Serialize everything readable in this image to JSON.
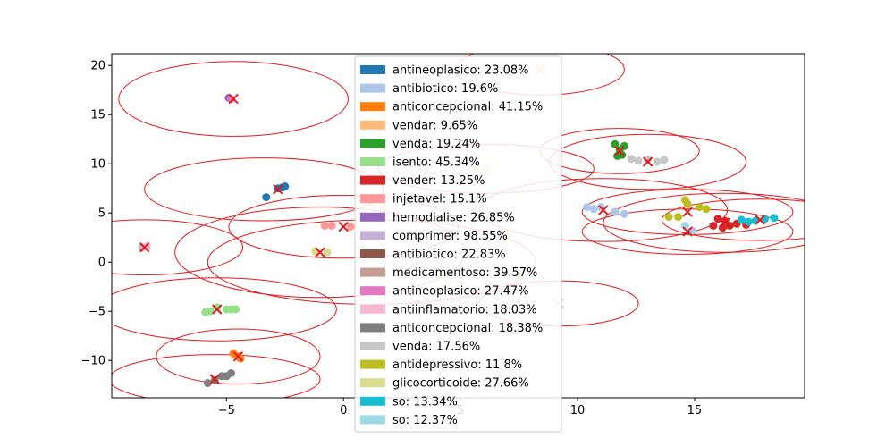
{
  "chart_data": {
    "type": "scatter",
    "title": "",
    "xlabel": "",
    "ylabel": "",
    "xlim": [
      -9.9,
      19.7
    ],
    "ylim": [
      -13.8,
      21.2
    ],
    "x_ticks": [
      {
        "value": -5,
        "label": "−5"
      },
      {
        "value": 0,
        "label": "0"
      },
      {
        "value": 5,
        "label": "5"
      },
      {
        "value": 10,
        "label": "10"
      },
      {
        "value": 15,
        "label": "15"
      }
    ],
    "y_ticks": [
      {
        "value": -10,
        "label": "−10"
      },
      {
        "value": -5,
        "label": "−5"
      },
      {
        "value": 0,
        "label": "0"
      },
      {
        "value": 5,
        "label": "5"
      },
      {
        "value": 10,
        "label": "10"
      },
      {
        "value": 15,
        "label": "15"
      },
      {
        "value": 20,
        "label": "20"
      }
    ],
    "grid": false,
    "legend_position": "top-center",
    "series": [
      {
        "name": "antineoplasico: 23.08%",
        "color": "#1f77b4",
        "points": [
          [
            -3.3,
            6.6
          ],
          [
            -2.6,
            7.6
          ],
          [
            -2.8,
            7.5
          ],
          [
            -2.5,
            7.7
          ]
        ]
      },
      {
        "name": "antibiotico: 19.6%",
        "color": "#aec7e8",
        "points": [
          [
            10.4,
            5.6
          ],
          [
            10.7,
            5.4
          ],
          [
            11.0,
            5.6
          ],
          [
            11.6,
            5.1
          ],
          [
            12.0,
            4.9
          ],
          [
            14.9,
            3.2
          ]
        ]
      },
      {
        "name": "anticoncepcional: 41.15%",
        "color": "#ff7f0e",
        "points": [
          [
            -4.7,
            -9.3
          ],
          [
            -4.5,
            -9.6
          ],
          [
            -4.4,
            -9.8
          ]
        ]
      },
      {
        "name": "vendar: 9.65%",
        "color": "#ffbb78",
        "points": []
      },
      {
        "name": "venda: 19.24%",
        "color": "#2ca02c",
        "points": [
          [
            11.6,
            12.0
          ],
          [
            11.8,
            11.4
          ],
          [
            11.7,
            10.8
          ],
          [
            11.9,
            10.9
          ],
          [
            12.0,
            11.8
          ]
        ]
      },
      {
        "name": "isento: 45.34%",
        "color": "#98df8a",
        "points": [
          [
            -5.9,
            -5.1
          ],
          [
            -5.7,
            -5.0
          ],
          [
            -5.4,
            -4.6
          ],
          [
            -5.0,
            -4.8
          ],
          [
            -4.8,
            -4.8
          ],
          [
            -4.6,
            -4.8
          ]
        ]
      },
      {
        "name": "vender: 13.25%",
        "color": "#d62728",
        "points": [
          [
            15.8,
            3.7
          ],
          [
            16.0,
            4.4
          ],
          [
            16.3,
            4.2
          ],
          [
            16.5,
            3.7
          ],
          [
            16.8,
            3.9
          ],
          [
            17.2,
            3.8
          ],
          [
            16.2,
            3.5
          ]
        ]
      },
      {
        "name": "injetavel: 15.1%",
        "color": "#ff9896",
        "points": [
          [
            -0.8,
            3.7
          ],
          [
            -0.5,
            3.7
          ],
          [
            0.3,
            3.6
          ]
        ]
      },
      {
        "name": "hemodialise: 26.85%",
        "color": "#9467bd",
        "points": [
          [
            -4.9,
            16.7
          ]
        ]
      },
      {
        "name": "comprimer: 98.55%",
        "color": "#c5b0d5",
        "points": [
          [
            -8.6,
            1.5
          ]
        ]
      },
      {
        "name": "antibiotico: 22.83%",
        "color": "#8c564b",
        "points": []
      },
      {
        "name": "medicamentoso: 39.57%",
        "color": "#c49c94",
        "points": []
      },
      {
        "name": "antineoplasico: 27.47%",
        "color": "#e377c2",
        "points": [
          [
            -4.8,
            16.6
          ]
        ]
      },
      {
        "name": "antiinflamatorio: 18.03%",
        "color": "#f7b6d2",
        "points": [
          [
            -8.4,
            1.6
          ]
        ]
      },
      {
        "name": "anticoncepcional: 18.38%",
        "color": "#7f7f7f",
        "points": [
          [
            -5.8,
            -12.3
          ],
          [
            -5.5,
            -12.0
          ],
          [
            -5.2,
            -11.6
          ],
          [
            -5.0,
            -11.6
          ],
          [
            -4.8,
            -11.3
          ]
        ]
      },
      {
        "name": "venda: 17.56%",
        "color": "#c7c7c7",
        "points": [
          [
            12.3,
            10.5
          ],
          [
            12.6,
            10.3
          ],
          [
            13.0,
            10.4
          ],
          [
            13.4,
            10.2
          ],
          [
            13.7,
            10.4
          ]
        ]
      },
      {
        "name": "antidepressivo: 11.8%",
        "color": "#bcbd22",
        "points": [
          [
            13.9,
            4.6
          ],
          [
            14.3,
            4.6
          ],
          [
            14.6,
            6.3
          ],
          [
            14.7,
            5.9
          ],
          [
            15.2,
            5.6
          ],
          [
            15.5,
            5.4
          ]
        ]
      },
      {
        "name": "glicocorticoide: 27.66%",
        "color": "#dbdb8d",
        "points": [
          [
            -1.2,
            1.1
          ],
          [
            -0.7,
            1.0
          ]
        ]
      },
      {
        "name": "so: 13.34%",
        "color": "#17becf",
        "points": [
          [
            17.0,
            4.3
          ],
          [
            17.3,
            4.1
          ],
          [
            17.6,
            4.2
          ],
          [
            18.0,
            4.4
          ],
          [
            18.4,
            4.5
          ]
        ]
      },
      {
        "name": "so: 12.37%",
        "color": "#9edae5",
        "points": [
          [
            14.6,
            3.7
          ]
        ]
      }
    ],
    "centers": [
      {
        "x": -4.7,
        "y": 16.6,
        "color": "#e31a1c"
      },
      {
        "x": -2.8,
        "y": 7.4,
        "color": "#e31a1c"
      },
      {
        "x": -8.5,
        "y": 1.5,
        "color": "#e31a1c"
      },
      {
        "x": 0.0,
        "y": 3.6,
        "color": "#e31a1c"
      },
      {
        "x": -1.0,
        "y": 1.0,
        "color": "#e31a1c"
      },
      {
        "x": -5.4,
        "y": -4.8,
        "color": "#e31a1c"
      },
      {
        "x": -4.5,
        "y": -9.6,
        "color": "#e31a1c"
      },
      {
        "x": -5.5,
        "y": -11.9,
        "color": "#e31a1c"
      },
      {
        "x": 8.4,
        "y": 19.6,
        "color": "#ffbb78"
      },
      {
        "x": 6.1,
        "y": 9.5,
        "color": "#ffbb78"
      },
      {
        "x": 4.2,
        "y": -1.5,
        "color": "#ffbb78"
      },
      {
        "x": 9.2,
        "y": -4.2,
        "color": "#f7b6d2"
      },
      {
        "x": 11.8,
        "y": 11.3,
        "color": "#e31a1c"
      },
      {
        "x": 13.0,
        "y": 10.2,
        "color": "#e31a1c"
      },
      {
        "x": 11.1,
        "y": 5.3,
        "color": "#e31a1c"
      },
      {
        "x": 14.7,
        "y": 5.1,
        "color": "#e31a1c"
      },
      {
        "x": 14.7,
        "y": 3.1,
        "color": "#e31a1c"
      },
      {
        "x": 16.3,
        "y": 4.0,
        "color": "#e31a1c"
      },
      {
        "x": 17.8,
        "y": 4.3,
        "color": "#e31a1c"
      }
    ],
    "circles": [
      {
        "cx": -4.7,
        "cy": 16.6,
        "rx": 4.9,
        "ry": 3.8
      },
      {
        "cx": -3.4,
        "cy": 7.4,
        "rx": 5.1,
        "ry": 3.2
      },
      {
        "cx": -8.5,
        "cy": 1.5,
        "rx": 4.2,
        "ry": 2.8
      },
      {
        "cx": 0.0,
        "cy": 3.6,
        "rx": 4.9,
        "ry": 3.2
      },
      {
        "cx": -1.0,
        "cy": 1.0,
        "rx": 6.2,
        "ry": 4.6
      },
      {
        "cx": 1.2,
        "cy": 0.0,
        "rx": 7.0,
        "ry": 4.3
      },
      {
        "cx": -5.4,
        "cy": -4.8,
        "rx": 5.1,
        "ry": 3.2
      },
      {
        "cx": -4.5,
        "cy": -9.6,
        "rx": 3.5,
        "ry": 2.8
      },
      {
        "cx": -5.5,
        "cy": -11.9,
        "rx": 4.5,
        "ry": 2.5
      },
      {
        "cx": 8.4,
        "cy": 19.6,
        "rx": 3.6,
        "ry": 2.6
      },
      {
        "cx": 6.1,
        "cy": 9.5,
        "rx": 4.6,
        "ry": 2.5
      },
      {
        "cx": 9.2,
        "cy": -4.2,
        "rx": 3.4,
        "ry": 2.3
      },
      {
        "cx": 11.8,
        "cy": 11.3,
        "rx": 3.4,
        "ry": 2.3
      },
      {
        "cx": 13.0,
        "cy": 10.2,
        "rx": 4.2,
        "ry": 2.8
      },
      {
        "cx": 11.1,
        "cy": 5.3,
        "rx": 5.3,
        "ry": 3.2
      },
      {
        "cx": 14.7,
        "cy": 5.1,
        "rx": 4.5,
        "ry": 2.3
      },
      {
        "cx": 14.7,
        "cy": 3.1,
        "rx": 4.5,
        "ry": 2.3
      },
      {
        "cx": 16.3,
        "cy": 4.0,
        "rx": 5.2,
        "ry": 3.0
      },
      {
        "cx": 17.8,
        "cy": 4.3,
        "rx": 4.2,
        "ry": 2.1
      }
    ]
  }
}
